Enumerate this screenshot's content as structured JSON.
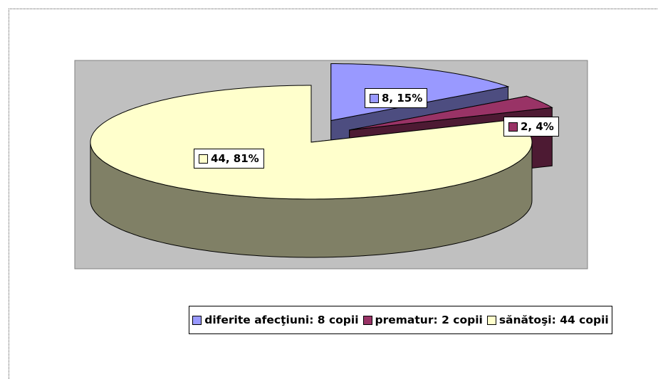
{
  "chart_data": {
    "type": "pie",
    "categories": [
      "diferite afecţiuni: 8 copii",
      "prematur: 2 copii",
      "sănătoşi: 44 copii"
    ],
    "values": [
      8,
      2,
      44
    ],
    "value_labels": [
      "8, 15%",
      "2, 4%",
      "44, 81%"
    ],
    "colors": [
      "#9999ff",
      "#993366",
      "#ffffcc"
    ],
    "legend": "bottom"
  }
}
